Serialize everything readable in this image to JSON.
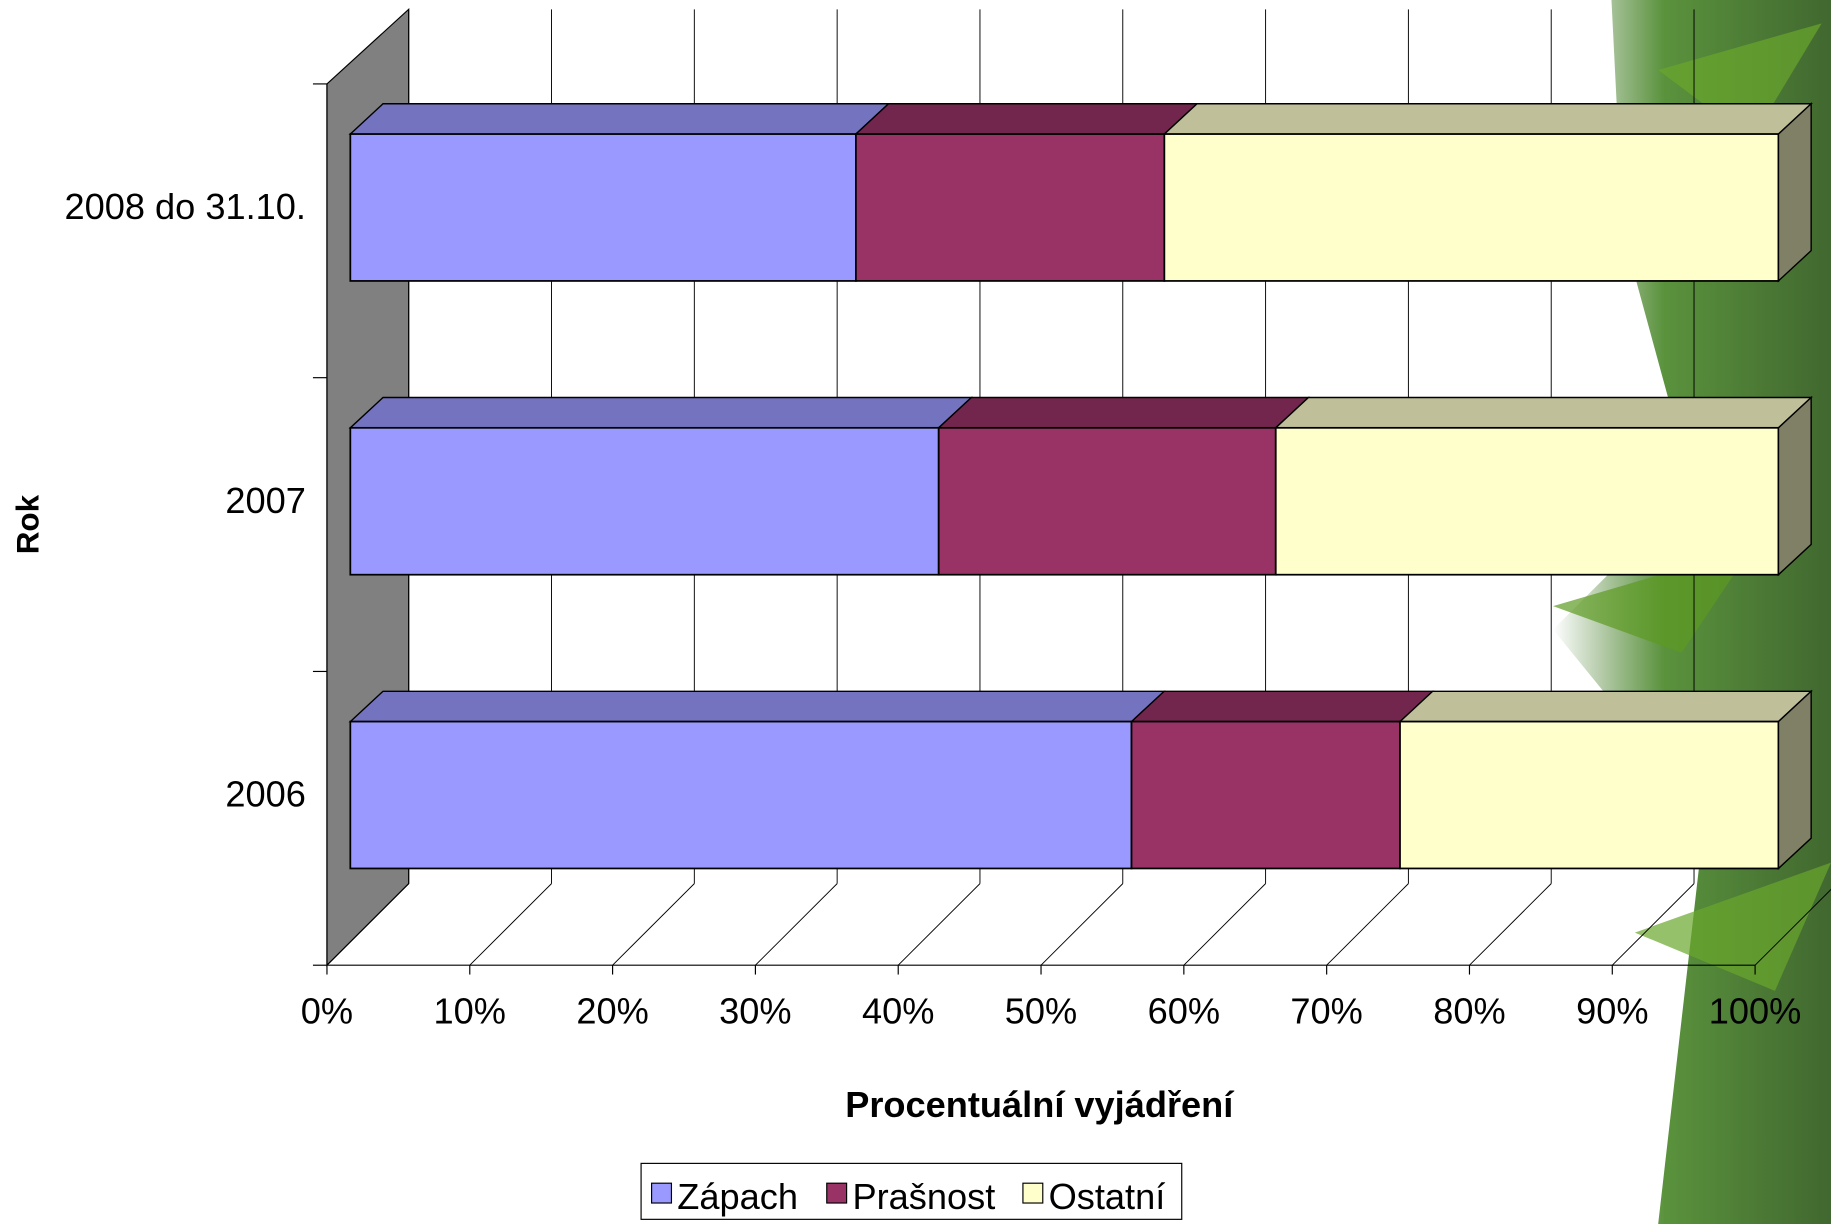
{
  "chart_data": {
    "type": "bar",
    "orientation": "horizontal",
    "stacked": true,
    "x_label": "Procentuální vyjádření",
    "y_label": "Rok",
    "categories": [
      "2006",
      "2007",
      "2008 do 31.10."
    ],
    "series": [
      {
        "name": "Zápach",
        "color": "#9999ff",
        "values": [
          54.7,
          41.2,
          35.4
        ]
      },
      {
        "name": "Prašnost",
        "color": "#993366",
        "values": [
          18.8,
          23.6,
          21.6
        ]
      },
      {
        "name": "Ostatní",
        "color": "#ffffcc",
        "values": [
          26.5,
          35.2,
          43.0
        ]
      }
    ],
    "xlim": [
      0,
      100
    ],
    "xticks": [
      {
        "value": 0,
        "label": "0%"
      },
      {
        "value": 10,
        "label": "10%"
      },
      {
        "value": 20,
        "label": "20%"
      },
      {
        "value": 30,
        "label": "30%"
      },
      {
        "value": 40,
        "label": "40%"
      },
      {
        "value": 50,
        "label": "50%"
      },
      {
        "value": 60,
        "label": "60%"
      },
      {
        "value": 70,
        "label": "70%"
      },
      {
        "value": 80,
        "label": "80%"
      },
      {
        "value": 90,
        "label": "90%"
      },
      {
        "value": 100,
        "label": "100%"
      }
    ],
    "grid": true,
    "legend": "bottom"
  }
}
